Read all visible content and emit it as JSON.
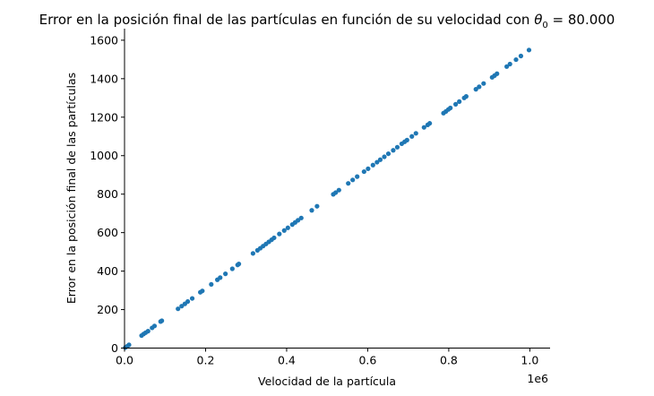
{
  "chart_data": {
    "type": "scatter",
    "title_main": "Error en la posición final de las partículas en función de su velocidad con ",
    "title_symbol": "θ",
    "title_subscript": "0",
    "title_value": " = 80.000",
    "xlabel": "Velocidad de la partícula",
    "ylabel": "Error en la posición final de las partículas",
    "x_offset_label": "1e6",
    "xlim": [
      0,
      1.05
    ],
    "ylim": [
      0,
      1660
    ],
    "x_ticks": [
      0.0,
      0.2,
      0.4,
      0.6,
      0.8,
      1.0
    ],
    "x_tick_labels": [
      "0.0",
      "0.2",
      "0.4",
      "0.6",
      "0.8",
      "1.0"
    ],
    "y_ticks": [
      0,
      200,
      400,
      600,
      800,
      1000,
      1200,
      1400,
      1600
    ],
    "y_tick_labels": [
      "0",
      "200",
      "400",
      "600",
      "800",
      "1000",
      "1200",
      "1400",
      "1600"
    ],
    "point_color": "#1f77b4",
    "grid": false,
    "x": [
      0.002,
      0.007,
      0.011,
      0.042,
      0.047,
      0.052,
      0.058,
      0.068,
      0.074,
      0.089,
      0.092,
      0.132,
      0.141,
      0.149,
      0.156,
      0.167,
      0.187,
      0.192,
      0.214,
      0.229,
      0.236,
      0.249,
      0.266,
      0.279,
      0.282,
      0.317,
      0.328,
      0.335,
      0.342,
      0.349,
      0.356,
      0.363,
      0.369,
      0.382,
      0.394,
      0.403,
      0.414,
      0.421,
      0.428,
      0.436,
      0.462,
      0.475,
      0.515,
      0.521,
      0.529,
      0.552,
      0.563,
      0.574,
      0.591,
      0.601,
      0.613,
      0.623,
      0.631,
      0.641,
      0.651,
      0.663,
      0.673,
      0.684,
      0.691,
      0.697,
      0.709,
      0.719,
      0.739,
      0.748,
      0.753,
      0.787,
      0.793,
      0.799,
      0.804,
      0.817,
      0.826,
      0.838,
      0.843,
      0.867,
      0.875,
      0.886,
      0.907,
      0.913,
      0.919,
      0.943,
      0.951,
      0.966,
      0.978,
      0.998
    ],
    "y": [
      3,
      10,
      17,
      65,
      73,
      80,
      88,
      105,
      115,
      138,
      142,
      204,
      218,
      230,
      242,
      258,
      290,
      297,
      331,
      355,
      366,
      386,
      412,
      432,
      437,
      492,
      508,
      519,
      530,
      541,
      552,
      563,
      573,
      593,
      611,
      625,
      642,
      653,
      664,
      676,
      716,
      737,
      799,
      808,
      821,
      856,
      874,
      891,
      917,
      932,
      951,
      966,
      979,
      994,
      1010,
      1028,
      1044,
      1062,
      1072,
      1081,
      1100,
      1116,
      1147,
      1160,
      1168,
      1221,
      1230,
      1240,
      1248,
      1267,
      1281,
      1300,
      1308,
      1345,
      1358,
      1375,
      1407,
      1416,
      1426,
      1463,
      1476,
      1499,
      1518,
      1549
    ]
  }
}
